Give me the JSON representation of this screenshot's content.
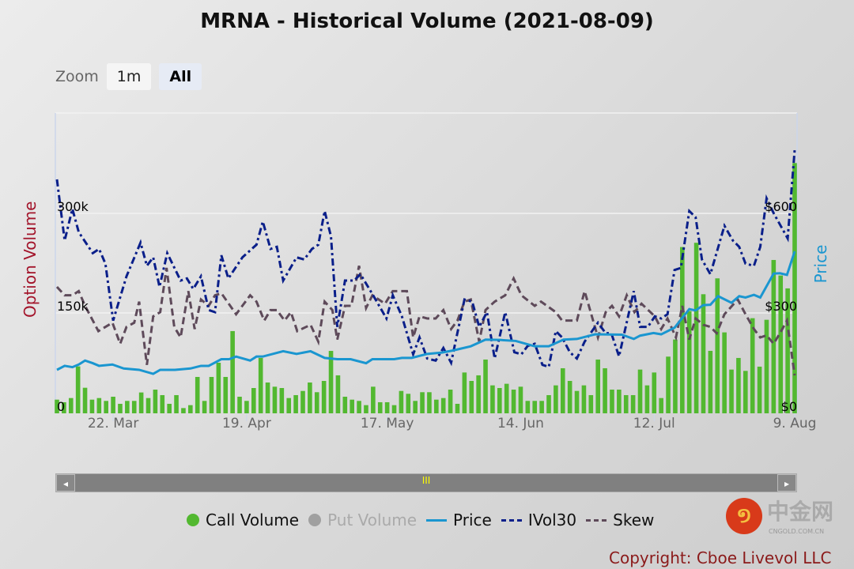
{
  "title": "MRNA - Historical Volume (2021-08-09)",
  "zoom": {
    "label": "Zoom",
    "buttons": [
      "1m",
      "All"
    ],
    "selected": "All"
  },
  "legend": [
    "Call Volume",
    "Put Volume",
    "Price",
    "IVol30",
    "Skew"
  ],
  "copyright": "Copyright: Cboe Livevol LLC",
  "watermark": {
    "text": "中金网",
    "sub": "CNGOLD.COM.CN"
  },
  "navigator": {
    "grip": "III",
    "left": "◂",
    "right": "▸"
  },
  "colors": {
    "call": "#52b830",
    "put": "#a0a0a0",
    "price": "#1a96d0",
    "ivol": "#0a1f8a",
    "skew": "#5e4a5a",
    "leftAxis": "#a3152b"
  },
  "chart_data": {
    "type": "bar+line",
    "title": "MRNA - Historical Volume (2021-08-09)",
    "ylabel": "Option Volume",
    "y2label": "Price",
    "ylim": [
      0,
      450000
    ],
    "y2lim": [
      0,
      900
    ],
    "yticks": [
      "0",
      "150k",
      "300k"
    ],
    "y2ticks": [
      "$0",
      "$300",
      "$600"
    ],
    "xticks": [
      {
        "label": "22. Mar",
        "index": 8
      },
      {
        "label": "19. Apr",
        "index": 27
      },
      {
        "label": "17. May",
        "index": 47
      },
      {
        "label": "14. Jun",
        "index": 66
      },
      {
        "label": "12. Jul",
        "index": 85
      },
      {
        "label": "9. Aug",
        "index": 105
      }
    ],
    "call_volume": [
      20600,
      16700,
      23000,
      70700,
      38500,
      20600,
      23000,
      18700,
      25000,
      14300,
      18700,
      18700,
      31400,
      23000,
      35700,
      27400,
      14300,
      27400,
      7900,
      12300,
      54800,
      18700,
      54800,
      76200,
      54800,
      123900,
      25000,
      18700,
      38100,
      83400,
      46400,
      40100,
      38100,
      23000,
      27400,
      33700,
      46400,
      31800,
      48800,
      94000,
      57200,
      25000,
      20600,
      18700,
      12300,
      40100,
      16700,
      16700,
      12300,
      33700,
      29400,
      18700,
      31800,
      31800,
      20600,
      23000,
      35700,
      14300,
      61500,
      48800,
      57200,
      81000,
      42100,
      38100,
      44500,
      35700,
      40100,
      18700,
      18700,
      18700,
      27400,
      42100,
      67900,
      48800,
      33700,
      42100,
      27400,
      81000,
      67900,
      35700,
      35700,
      27400,
      27400,
      65900,
      42100,
      61500,
      23000,
      85400,
      111200,
      250500,
      154000,
      256900,
      179400,
      94100,
      203300,
      121900,
      65900,
      83400,
      63900,
      143300,
      70300,
      140900,
      231000,
      207600,
      188200,
      377000
    ],
    "price": [
      [
        0,
        131
      ],
      [
        1.1,
        143
      ],
      [
        2.2,
        139
      ],
      [
        3.1,
        147
      ],
      [
        4,
        159
      ],
      [
        5.1,
        151
      ],
      [
        6,
        143
      ],
      [
        7.9,
        147
      ],
      [
        9.5,
        135
      ],
      [
        11.7,
        131
      ],
      [
        13.7,
        119
      ],
      [
        14.7,
        131
      ],
      [
        16.8,
        131
      ],
      [
        19,
        135
      ],
      [
        20.5,
        143
      ],
      [
        21.6,
        143
      ],
      [
        23.4,
        163
      ],
      [
        24.5,
        163
      ],
      [
        25.5,
        171
      ],
      [
        27.5,
        159
      ],
      [
        28.4,
        171
      ],
      [
        29.3,
        171
      ],
      [
        32.2,
        187
      ],
      [
        34.1,
        179
      ],
      [
        36.1,
        187
      ],
      [
        38.1,
        167
      ],
      [
        39.9,
        163
      ],
      [
        41.8,
        163
      ],
      [
        44,
        151
      ],
      [
        44.9,
        163
      ],
      [
        48,
        163
      ],
      [
        49.1,
        167
      ],
      [
        50.5,
        167
      ],
      [
        52.7,
        179
      ],
      [
        54.8,
        183
      ],
      [
        56.3,
        189
      ],
      [
        58.9,
        202
      ],
      [
        61,
        222
      ],
      [
        63.1,
        221
      ],
      [
        65.3,
        218
      ],
      [
        68,
        202
      ],
      [
        70,
        202
      ],
      [
        72.1,
        222
      ],
      [
        74,
        224
      ],
      [
        76.6,
        238
      ],
      [
        80.4,
        237
      ],
      [
        82.1,
        224
      ],
      [
        83,
        234
      ],
      [
        84.9,
        242
      ],
      [
        86,
        238
      ],
      [
        87.9,
        258
      ],
      [
        90,
        314
      ],
      [
        90.9,
        310
      ],
      [
        92,
        326
      ],
      [
        93,
        327
      ],
      [
        94.1,
        353
      ],
      [
        96,
        333
      ],
      [
        97.1,
        353
      ],
      [
        98,
        349
      ],
      [
        99.2,
        357
      ],
      [
        100.1,
        349
      ],
      [
        102,
        421
      ],
      [
        102.9,
        422
      ],
      [
        103.9,
        417
      ],
      [
        105,
        488
      ]
    ],
    "ivol30": [
      [
        0,
        111
      ],
      [
        1.1,
        82
      ],
      [
        2.2,
        97
      ],
      [
        3.1,
        86
      ],
      [
        5.1,
        76
      ],
      [
        6,
        78
      ],
      [
        6.9,
        71
      ],
      [
        8,
        44
      ],
      [
        9.9,
        65
      ],
      [
        11.9,
        81
      ],
      [
        12.8,
        70
      ],
      [
        13.7,
        74
      ],
      [
        14.6,
        60
      ],
      [
        15.7,
        76
      ],
      [
        17.6,
        63
      ],
      [
        18.5,
        64
      ],
      [
        19.4,
        59
      ],
      [
        20.5,
        65
      ],
      [
        21.6,
        49
      ],
      [
        22.5,
        48
      ],
      [
        23.4,
        75
      ],
      [
        24.4,
        64
      ],
      [
        26.4,
        74
      ],
      [
        28.4,
        80
      ],
      [
        29.3,
        91
      ],
      [
        30.4,
        78
      ],
      [
        31.3,
        79
      ],
      [
        32.2,
        63
      ],
      [
        34.1,
        74
      ],
      [
        35.2,
        73
      ],
      [
        36.3,
        78
      ],
      [
        37.2,
        80
      ],
      [
        38.1,
        96
      ],
      [
        39,
        84
      ],
      [
        39.9,
        41
      ],
      [
        41,
        63
      ],
      [
        42.3,
        63
      ],
      [
        43.2,
        66
      ],
      [
        45,
        56
      ],
      [
        46.9,
        45
      ],
      [
        47.8,
        56
      ],
      [
        49.1,
        46
      ],
      [
        50.7,
        28
      ],
      [
        51.6,
        36
      ],
      [
        52.7,
        26
      ],
      [
        53.9,
        25
      ],
      [
        55,
        31
      ],
      [
        56.1,
        24
      ],
      [
        58,
        54
      ],
      [
        59.1,
        53
      ],
      [
        60.1,
        41
      ],
      [
        61.2,
        48
      ],
      [
        62.3,
        26
      ],
      [
        63.8,
        48
      ],
      [
        65.1,
        29
      ],
      [
        66.1,
        28
      ],
      [
        67,
        32
      ],
      [
        68,
        33
      ],
      [
        69.1,
        23
      ],
      [
        70,
        22
      ],
      [
        71,
        39
      ],
      [
        71.9,
        36
      ],
      [
        73,
        29
      ],
      [
        74,
        26
      ],
      [
        75.1,
        34
      ],
      [
        77,
        43
      ],
      [
        78.1,
        38
      ],
      [
        78.9,
        38
      ],
      [
        80,
        27
      ],
      [
        82.1,
        58
      ],
      [
        83,
        41
      ],
      [
        84.1,
        41
      ],
      [
        85.1,
        46
      ],
      [
        86,
        45
      ],
      [
        86.9,
        47
      ],
      [
        87.9,
        68
      ],
      [
        88.8,
        69
      ],
      [
        90,
        96
      ],
      [
        90.9,
        93
      ],
      [
        91.8,
        73
      ],
      [
        93,
        66
      ],
      [
        95,
        89
      ],
      [
        96.2,
        82
      ],
      [
        97.1,
        79
      ],
      [
        98,
        71
      ],
      [
        99.2,
        70
      ],
      [
        100.1,
        79
      ],
      [
        101,
        102
      ],
      [
        102,
        95
      ],
      [
        104,
        83
      ],
      [
        105,
        125
      ]
    ],
    "skew": [
      [
        0,
        60
      ],
      [
        1.1,
        56
      ],
      [
        2.2,
        56
      ],
      [
        3.1,
        58
      ],
      [
        4,
        51
      ],
      [
        5.9,
        39
      ],
      [
        7.9,
        43
      ],
      [
        9,
        33
      ],
      [
        9.9,
        41
      ],
      [
        11,
        43
      ],
      [
        11.7,
        53
      ],
      [
        12.8,
        23
      ],
      [
        13.7,
        46
      ],
      [
        14.7,
        48
      ],
      [
        15.6,
        69
      ],
      [
        16.7,
        41
      ],
      [
        17.6,
        36
      ],
      [
        18.7,
        58
      ],
      [
        19.6,
        40
      ],
      [
        20.5,
        54
      ],
      [
        21.6,
        51
      ],
      [
        22.5,
        56
      ],
      [
        23.4,
        57
      ],
      [
        25.5,
        47
      ],
      [
        27.5,
        56
      ],
      [
        28.4,
        53
      ],
      [
        29.5,
        44
      ],
      [
        30.4,
        49
      ],
      [
        31.3,
        49
      ],
      [
        32.4,
        44
      ],
      [
        33.3,
        48
      ],
      [
        34.2,
        39
      ],
      [
        36.1,
        42
      ],
      [
        37.2,
        34
      ],
      [
        38.1,
        53
      ],
      [
        39.2,
        49
      ],
      [
        39.9,
        35
      ],
      [
        41,
        51
      ],
      [
        41.9,
        51
      ],
      [
        43,
        70
      ],
      [
        44,
        50
      ],
      [
        44.9,
        56
      ],
      [
        45.8,
        54
      ],
      [
        46.7,
        52
      ],
      [
        47.8,
        58
      ],
      [
        49.8,
        58
      ],
      [
        50.7,
        36
      ],
      [
        51.6,
        46
      ],
      [
        52.7,
        45
      ],
      [
        53.9,
        45
      ],
      [
        55,
        49
      ],
      [
        56.1,
        40
      ],
      [
        57,
        44
      ],
      [
        58,
        53
      ],
      [
        58.9,
        54
      ],
      [
        60.1,
        34
      ],
      [
        61,
        49
      ],
      [
        62.3,
        53
      ],
      [
        63.8,
        56
      ],
      [
        65,
        64
      ],
      [
        66.1,
        56
      ],
      [
        68,
        51
      ],
      [
        68.9,
        53
      ],
      [
        71,
        48
      ],
      [
        71.9,
        44
      ],
      [
        73,
        44
      ],
      [
        74,
        44
      ],
      [
        75.1,
        58
      ],
      [
        77,
        36
      ],
      [
        78.1,
        48
      ],
      [
        79,
        51
      ],
      [
        80,
        46
      ],
      [
        81.1,
        56
      ],
      [
        82.2,
        48
      ],
      [
        83.2,
        52
      ],
      [
        85.1,
        46
      ],
      [
        86,
        40
      ],
      [
        86.9,
        45
      ],
      [
        88.1,
        36
      ],
      [
        89,
        51
      ],
      [
        90,
        35
      ],
      [
        90.9,
        45
      ],
      [
        92,
        42
      ],
      [
        93,
        41
      ],
      [
        93.9,
        38
      ],
      [
        95,
        47
      ],
      [
        96.9,
        54
      ],
      [
        98,
        47
      ],
      [
        99.2,
        40
      ],
      [
        100.1,
        36
      ],
      [
        101,
        37
      ],
      [
        102,
        33
      ],
      [
        102.9,
        38
      ],
      [
        103.9,
        44
      ],
      [
        105,
        18
      ]
    ]
  }
}
